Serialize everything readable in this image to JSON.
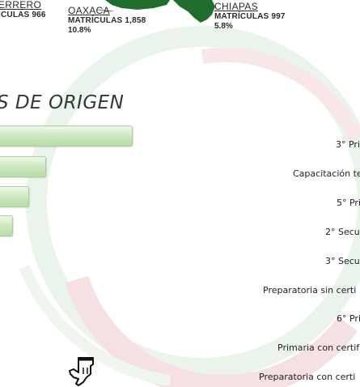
{
  "states": [
    {
      "name": "ERRERO",
      "stat": "ICULAS 966",
      "pct": ""
    },
    {
      "name": "OAXACA",
      "stat": "MATRÍCULAS 1,858",
      "pct": "10.8%"
    },
    {
      "name": "CHIAPAS",
      "stat": "MATRÍCULAS 997",
      "pct": "5.8%"
    }
  ],
  "section_title": "S DE ORIGEN",
  "chart_data": {
    "type": "bar",
    "orientation": "horizontal",
    "title": "S DE ORIGEN",
    "values": [
      4,
      1.55,
      1.05,
      0.6
    ],
    "grid": false
  },
  "categories_list": [
    "3° Pri",
    "Capacitación te",
    "5° Pri",
    "2° Secun",
    "3° Secun",
    "Preparatoria sin certi",
    "6° Pri",
    "Primaria con certif",
    "Preparatoria con certi"
  ],
  "colors": {
    "map_green": "#1f6e2c",
    "bar_green": "#c4e3b4",
    "watermark_red": "#f2dede",
    "watermark_green": "#e6f2e6"
  },
  "icons": {
    "pointer": "hand-pointer-icon"
  }
}
